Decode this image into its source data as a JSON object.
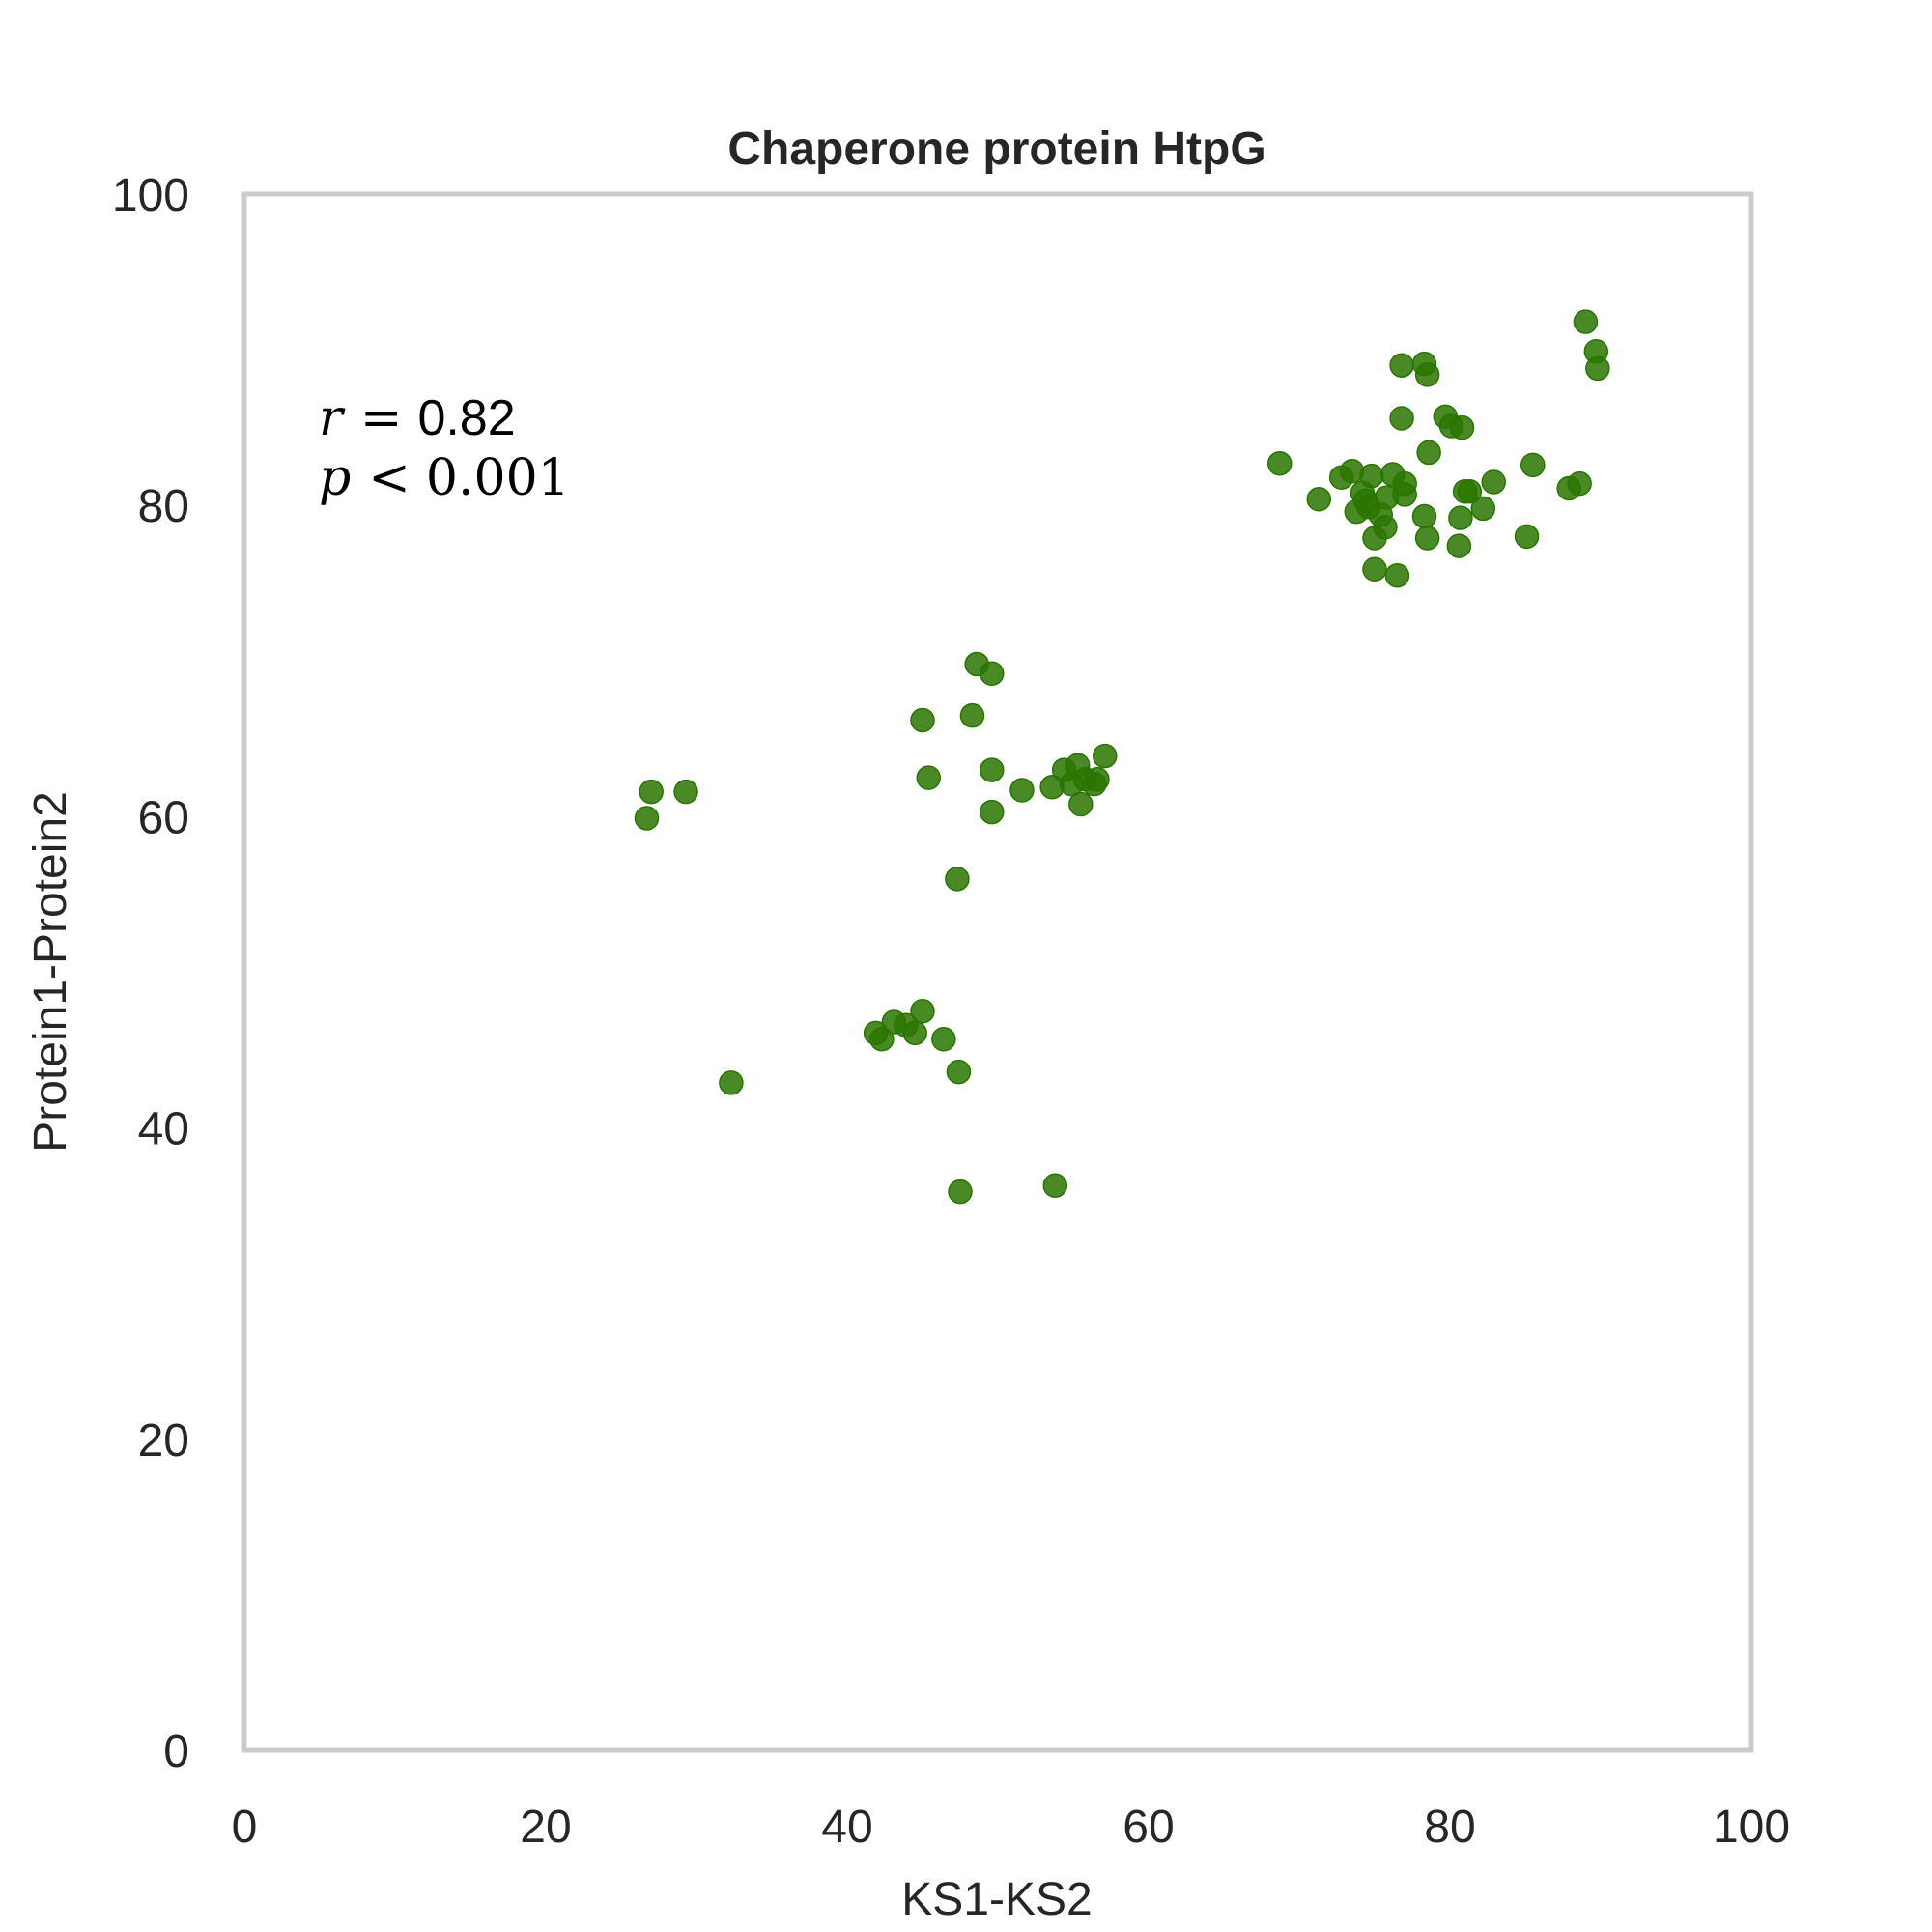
{
  "chart_data": {
    "type": "scatter",
    "title": "Chaperone protein HtpG",
    "xlabel": "KS1-KS2",
    "ylabel": "Protein1-Protein2",
    "xlim": [
      0,
      100
    ],
    "ylim": [
      0,
      100
    ],
    "xticks": [
      "0",
      "20",
      "40",
      "60",
      "80",
      "100"
    ],
    "yticks": [
      "0",
      "20",
      "40",
      "60",
      "80",
      "100"
    ],
    "grid": false,
    "point_color": "#2a7500",
    "frame_color": "#cccccc",
    "annotation": {
      "r_symbol": "r",
      "r_op": "=",
      "r_value": "0.82",
      "p_symbol": "p",
      "p_op": "<",
      "p_value": "0.001"
    },
    "series": [
      {
        "points": [
          [
            26.7,
            59.9
          ],
          [
            27.0,
            61.6
          ],
          [
            29.3,
            61.6
          ],
          [
            32.3,
            42.9
          ],
          [
            41.9,
            46.1
          ],
          [
            42.3,
            45.7
          ],
          [
            43.1,
            46.8
          ],
          [
            43.9,
            46.6
          ],
          [
            44.5,
            46.1
          ],
          [
            45.0,
            47.5
          ],
          [
            46.4,
            45.7
          ],
          [
            47.4,
            43.6
          ],
          [
            47.5,
            35.9
          ],
          [
            47.3,
            56.0
          ],
          [
            45.0,
            66.2
          ],
          [
            45.4,
            62.5
          ],
          [
            48.3,
            66.5
          ],
          [
            48.6,
            69.8
          ],
          [
            49.6,
            69.2
          ],
          [
            49.6,
            63.0
          ],
          [
            49.6,
            60.3
          ],
          [
            51.6,
            61.7
          ],
          [
            53.6,
            61.9
          ],
          [
            53.8,
            36.3
          ],
          [
            54.4,
            63.0
          ],
          [
            54.9,
            62.1
          ],
          [
            55.3,
            63.3
          ],
          [
            55.5,
            60.8
          ],
          [
            55.8,
            62.4
          ],
          [
            56.4,
            62.1
          ],
          [
            56.6,
            62.4
          ],
          [
            57.1,
            63.9
          ],
          [
            68.7,
            82.7
          ],
          [
            71.3,
            80.4
          ],
          [
            72.8,
            81.8
          ],
          [
            73.5,
            82.2
          ],
          [
            73.8,
            79.6
          ],
          [
            74.2,
            80.8
          ],
          [
            74.4,
            80.3
          ],
          [
            74.6,
            79.9
          ],
          [
            74.8,
            81.9
          ],
          [
            75.0,
            77.9
          ],
          [
            75.0,
            75.9
          ],
          [
            75.4,
            79.4
          ],
          [
            75.7,
            78.6
          ],
          [
            75.8,
            80.5
          ],
          [
            76.2,
            82.0
          ],
          [
            76.5,
            75.5
          ],
          [
            76.8,
            89.0
          ],
          [
            76.8,
            85.6
          ],
          [
            77.0,
            80.7
          ],
          [
            77.0,
            81.4
          ],
          [
            78.3,
            79.3
          ],
          [
            78.3,
            89.1
          ],
          [
            78.5,
            88.4
          ],
          [
            78.5,
            77.9
          ],
          [
            78.6,
            83.4
          ],
          [
            79.7,
            85.7
          ],
          [
            80.1,
            85.1
          ],
          [
            80.6,
            77.4
          ],
          [
            80.7,
            79.2
          ],
          [
            80.8,
            85.0
          ],
          [
            81.0,
            80.9
          ],
          [
            81.3,
            80.9
          ],
          [
            82.2,
            79.8
          ],
          [
            82.9,
            81.5
          ],
          [
            85.1,
            78.0
          ],
          [
            85.5,
            82.6
          ],
          [
            87.9,
            81.1
          ],
          [
            88.6,
            81.4
          ],
          [
            89.0,
            91.8
          ],
          [
            89.7,
            89.9
          ],
          [
            89.8,
            88.8
          ]
        ]
      }
    ]
  }
}
